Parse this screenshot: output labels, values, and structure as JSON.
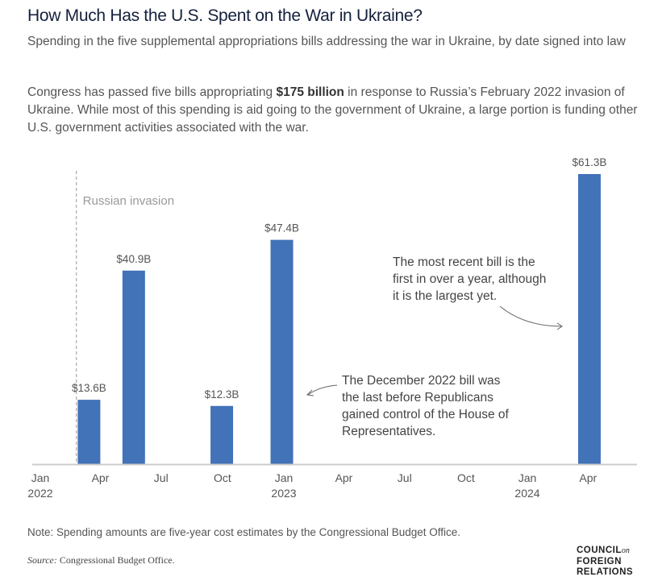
{
  "header": {
    "title": "How Much Has the U.S. Spent on the War in Ukraine?",
    "subtitle": "Spending in the five supplemental appropriations bills addressing the war in Ukraine, by date signed into law",
    "desc_before": "Congress has passed five bills appropriating ",
    "desc_bold": "$175 billion",
    "desc_after": " in response to Russia’s February 2022 invasion of Ukraine. While most of this spending is aid going to the government of Ukraine, a large portion is funding other U.S. government activities associated with the war."
  },
  "chart_data": {
    "type": "bar",
    "title": "",
    "xlabel": "",
    "ylabel": "",
    "x_axis": "date",
    "xlim": [
      "2022-01-01",
      "2024-06-15"
    ],
    "ylim": [
      0,
      61.3
    ],
    "grid": false,
    "bar_color": "#4272b8",
    "x_ticks": [
      {
        "date": "2022-01-01",
        "label": "Jan",
        "year": "2022"
      },
      {
        "date": "2022-04-01",
        "label": "Apr",
        "year": ""
      },
      {
        "date": "2022-07-01",
        "label": "Jul",
        "year": ""
      },
      {
        "date": "2022-10-01",
        "label": "Oct",
        "year": ""
      },
      {
        "date": "2023-01-01",
        "label": "Jan",
        "year": "2023"
      },
      {
        "date": "2023-04-01",
        "label": "Apr",
        "year": ""
      },
      {
        "date": "2023-07-01",
        "label": "Jul",
        "year": ""
      },
      {
        "date": "2023-10-01",
        "label": "Oct",
        "year": ""
      },
      {
        "date": "2024-01-01",
        "label": "Jan",
        "year": "2024"
      },
      {
        "date": "2024-04-01",
        "label": "Apr",
        "year": ""
      }
    ],
    "bars": [
      {
        "date": "2022-03-15",
        "value": 13.6,
        "label": "$13.6B"
      },
      {
        "date": "2022-05-21",
        "value": 40.9,
        "label": "$40.9B"
      },
      {
        "date": "2022-09-30",
        "value": 12.3,
        "label": "$12.3B"
      },
      {
        "date": "2022-12-29",
        "value": 47.4,
        "label": "$47.4B"
      },
      {
        "date": "2024-04-03",
        "value": 61.3,
        "label": "$61.3B"
      }
    ],
    "reference_line": {
      "date": "2022-02-24",
      "label": "Russian invasion"
    },
    "annotations": [
      {
        "lines": [
          "The December 2022 bill was",
          "the last before Republicans",
          "gained control of the House of",
          "Representatives."
        ]
      },
      {
        "lines": [
          "The most recent bill is the",
          "first in over a year, although",
          "it is the largest yet."
        ]
      }
    ]
  },
  "footer": {
    "note": "Note: Spending amounts are five-year cost estimates by the Congressional Budget Office.",
    "source_label": "Source:",
    "source_text": " Congressional Budget Office.",
    "logo": [
      "COUNCIL",
      "on",
      "FOREIGN",
      "RELATIONS"
    ]
  }
}
